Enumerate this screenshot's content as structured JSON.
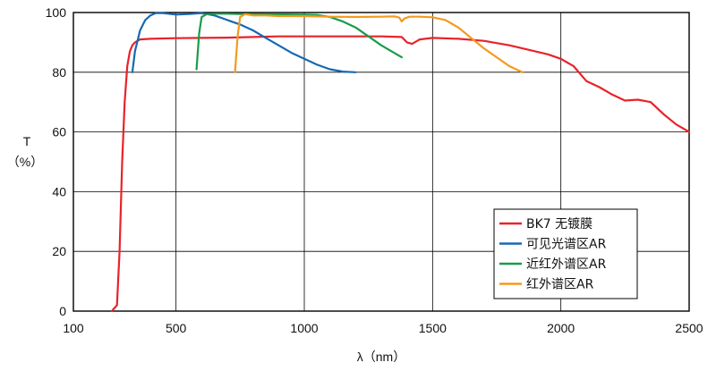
{
  "chart_data": {
    "type": "line",
    "title": "",
    "xlabel": "λ（nm）",
    "ylabel_line1": "T",
    "ylabel_line2": "（%）",
    "xlim": [
      100,
      2500
    ],
    "ylim": [
      0,
      100
    ],
    "xticks": [
      100,
      500,
      1000,
      1500,
      2000,
      2500
    ],
    "yticks": [
      0,
      20,
      40,
      60,
      80,
      100
    ],
    "grid": true,
    "legend_position": "bottom-right",
    "series": [
      {
        "name": "BK7 无镀膜",
        "color": "#e8232a",
        "x": [
          250,
          270,
          280,
          290,
          300,
          310,
          320,
          330,
          340,
          360,
          400,
          500,
          600,
          700,
          800,
          900,
          1000,
          1100,
          1200,
          1300,
          1380,
          1400,
          1420,
          1450,
          1500,
          1600,
          1700,
          1800,
          1900,
          1950,
          2000,
          2050,
          2100,
          2150,
          2200,
          2250,
          2300,
          2350,
          2400,
          2450,
          2500
        ],
        "y": [
          0,
          2,
          20,
          50,
          70,
          82,
          87,
          89,
          90,
          91,
          91.2,
          91.4,
          91.5,
          91.6,
          91.8,
          92,
          92,
          92,
          92,
          92,
          91.8,
          90,
          89.5,
          91,
          91.5,
          91.2,
          90.5,
          89,
          87,
          86,
          84.5,
          82,
          77,
          75,
          72.5,
          70.5,
          70.8,
          70,
          66,
          62.5,
          60
        ]
      },
      {
        "name": "可见光谱区AR",
        "color": "#1768b2",
        "x": [
          330,
          340,
          360,
          380,
          400,
          420,
          450,
          500,
          550,
          600,
          650,
          700,
          750,
          800,
          850,
          900,
          950,
          1000,
          1050,
          1100,
          1150,
          1200
        ],
        "y": [
          80,
          87,
          94,
          97.5,
          99,
          99.8,
          99.8,
          99.3,
          99.5,
          99.8,
          99,
          97.5,
          96,
          94,
          91.5,
          89,
          86.5,
          84.5,
          82.5,
          81,
          80.2,
          80
        ]
      },
      {
        "name": "近红外谱区AR",
        "color": "#1a9b48",
        "x": [
          580,
          590,
          600,
          620,
          650,
          700,
          750,
          800,
          900,
          1000,
          1050,
          1100,
          1150,
          1200,
          1250,
          1300,
          1350,
          1380
        ],
        "y": [
          81,
          93,
          98.5,
          99.5,
          99.6,
          99.6,
          99.5,
          99.5,
          99.4,
          99.3,
          99.2,
          98.5,
          97,
          95,
          92,
          89,
          86.5,
          85
        ]
      },
      {
        "name": "红外谱区AR",
        "color": "#f39a1e",
        "x": [
          730,
          740,
          750,
          770,
          800,
          850,
          900,
          1000,
          1100,
          1200,
          1300,
          1350,
          1370,
          1380,
          1390,
          1410,
          1450,
          1500,
          1550,
          1600,
          1650,
          1700,
          1750,
          1800,
          1850
        ],
        "y": [
          80,
          92,
          98.5,
          99.5,
          99,
          99,
          98.8,
          98.8,
          98.6,
          98.5,
          98.6,
          98.7,
          98.3,
          97,
          98,
          98.6,
          98.6,
          98.4,
          97.5,
          95,
          91.5,
          88,
          85,
          82,
          80
        ]
      }
    ]
  }
}
